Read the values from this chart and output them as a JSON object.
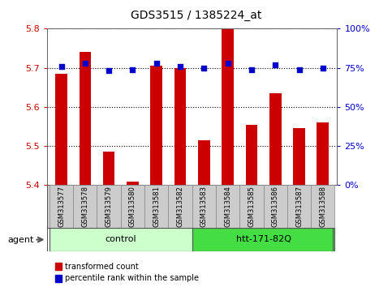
{
  "title": "GDS3515 / 1385224_at",
  "samples": [
    "GSM313577",
    "GSM313578",
    "GSM313579",
    "GSM313580",
    "GSM313581",
    "GSM313582",
    "GSM313583",
    "GSM313584",
    "GSM313585",
    "GSM313586",
    "GSM313587",
    "GSM313588"
  ],
  "bar_values": [
    5.685,
    5.74,
    5.485,
    5.41,
    5.705,
    5.7,
    5.515,
    5.8,
    5.555,
    5.635,
    5.545,
    5.56
  ],
  "percentile_values": [
    76,
    78,
    73,
    74,
    78,
    76,
    75,
    78,
    74,
    77,
    74,
    75
  ],
  "groups": [
    {
      "label": "control",
      "start": 0,
      "end": 5,
      "color": "#ccffcc"
    },
    {
      "label": "htt-171-82Q",
      "start": 6,
      "end": 11,
      "color": "#44dd44"
    }
  ],
  "ylim_left": [
    5.4,
    5.8
  ],
  "ylim_right": [
    0,
    100
  ],
  "yticks_left": [
    5.4,
    5.5,
    5.6,
    5.7,
    5.8
  ],
  "yticks_right": [
    0,
    25,
    50,
    75,
    100
  ],
  "bar_color": "#cc0000",
  "dot_color": "#0000cc",
  "bar_width": 0.5,
  "left_tick_color": "#cc0000",
  "right_tick_color": "#0000cc",
  "background_color": "#ffffff",
  "legend_items": [
    {
      "label": "transformed count",
      "color": "#cc0000"
    },
    {
      "label": "percentile rank within the sample",
      "color": "#0000cc"
    }
  ],
  "agent_label": "agent",
  "figsize": [
    4.83,
    3.54
  ],
  "dpi": 100
}
